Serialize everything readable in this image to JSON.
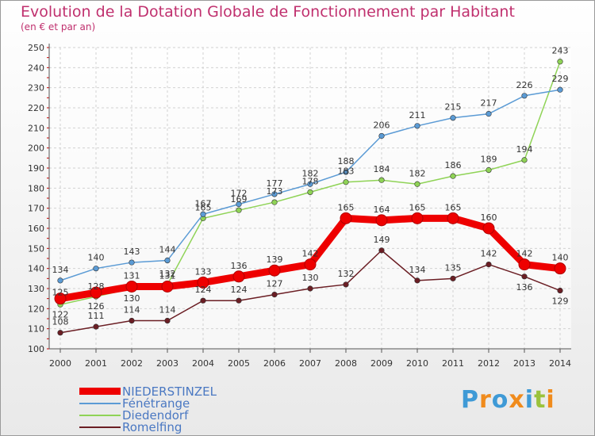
{
  "title": "Evolution de la Dotation Globale de Fonctionnement par Habitant",
  "subtitle": "(en € et par an)",
  "chart_data": {
    "type": "line",
    "title": "Evolution de la Dotation Globale de Fonctionnement par Habitant",
    "ylabel": "(en € et par an)",
    "xlabel": "",
    "ylim": [
      100,
      250
    ],
    "ytick_step": 10,
    "grid": true,
    "categories": [
      "2000",
      "2001",
      "2002",
      "2003",
      "2004",
      "2005",
      "2006",
      "2007",
      "2008",
      "2009",
      "2010",
      "2011",
      "2012",
      "2013",
      "2014"
    ],
    "y_ticks": [
      "100",
      "110",
      "120",
      "130",
      "140",
      "150",
      "160",
      "170",
      "180",
      "190",
      "200",
      "210",
      "220",
      "230",
      "240",
      "250"
    ],
    "series": [
      {
        "name": "NIEDERSTINZEL",
        "color": "#ee0000",
        "values": [
          125,
          128,
          131,
          131,
          133,
          136,
          139,
          142,
          165,
          164,
          165,
          165,
          160,
          142,
          140
        ]
      },
      {
        "name": "Fénétrange",
        "color": "#5b9bd5",
        "values": [
          134,
          140,
          143,
          144,
          167,
          172,
          177,
          182,
          188,
          206,
          211,
          215,
          217,
          226,
          229
        ]
      },
      {
        "name": "Diedendorf",
        "color": "#8fd356",
        "values": [
          122,
          126,
          130,
          132,
          165,
          169,
          173,
          178,
          183,
          184,
          182,
          186,
          189,
          194,
          243
        ]
      },
      {
        "name": "Romelfing",
        "color": "#6b1e24",
        "values": [
          108,
          111,
          114,
          114,
          124,
          124,
          127,
          130,
          132,
          149,
          134,
          135,
          142,
          136,
          129
        ]
      }
    ]
  },
  "legend": [
    {
      "label": "NIEDERSTINZEL",
      "color": "#ee0000"
    },
    {
      "label": "Fénétrange",
      "color": "#5b9bd5"
    },
    {
      "label": "Diedendorf",
      "color": "#8fd356"
    },
    {
      "label": "Romelfing",
      "color": "#6b1e24"
    }
  ],
  "logo": {
    "text": "Proxiti",
    "letters": [
      "P",
      "r",
      "o",
      "x",
      "i",
      "t",
      "i"
    ],
    "colors": [
      "#3f9ad6",
      "#f08b1c",
      "#3f9ad6",
      "#f08b1c",
      "#3f9ad6",
      "#9bc23c",
      "#f08b1c"
    ]
  }
}
